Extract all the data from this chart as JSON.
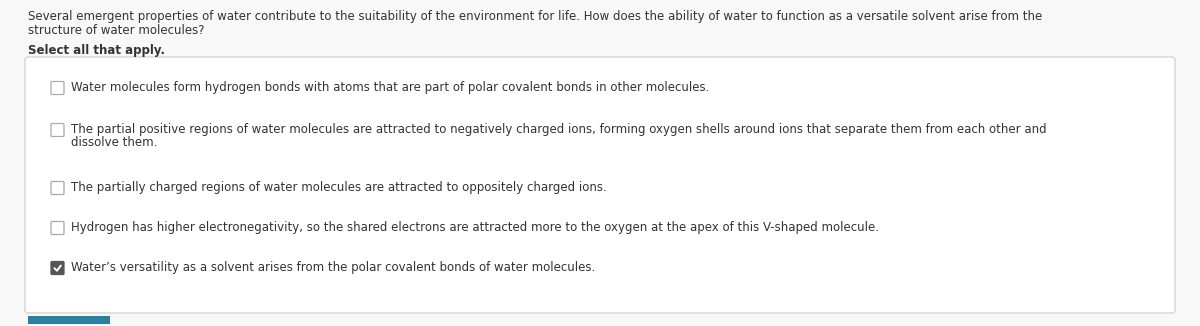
{
  "background_color": "#f8f8f8",
  "question_text_line1": "Several emergent properties of water contribute to the suitability of the environment for life. How does the ability of water to function as a versatile solvent arise from the",
  "question_text_line2": "structure of water molecules?",
  "instruction_text": "Select all that apply.",
  "options": [
    {
      "lines": [
        "Water molecules form hydrogen bonds with atoms that are part of polar covalent bonds in other molecules."
      ],
      "checked": false
    },
    {
      "lines": [
        "The partial positive regions of water molecules are attracted to negatively charged ions, forming oxygen shells around ions that separate them from each other and",
        "dissolve them."
      ],
      "checked": false
    },
    {
      "lines": [
        "The partially charged regions of water molecules are attracted to oppositely charged ions."
      ],
      "checked": false
    },
    {
      "lines": [
        "Hydrogen has higher electronegativity, so the shared electrons are attracted more to the oxygen at the apex of this V-shaped molecule."
      ],
      "checked": false
    },
    {
      "lines": [
        "Water’s versatility as a solvent arises from the polar covalent bonds of water molecules."
      ],
      "checked": true
    }
  ],
  "checkbox_color_unchecked_edge": "#aaaaaa",
  "checkbox_color_unchecked_face": "#ffffff",
  "checkbox_color_checked_edge": "#555555",
  "checkbox_color_checked_face": "#555555",
  "check_color": "#ffffff",
  "box_border_color": "#cccccc",
  "box_bg_color": "#ffffff",
  "question_font_size": 8.5,
  "instruction_font_size": 8.5,
  "option_font_size": 8.5,
  "question_color": "#333333",
  "option_color": "#333333",
  "bottom_bar_color": "#2980a0",
  "bottom_bar_width": 0.068,
  "bottom_bar_height": 0.025
}
